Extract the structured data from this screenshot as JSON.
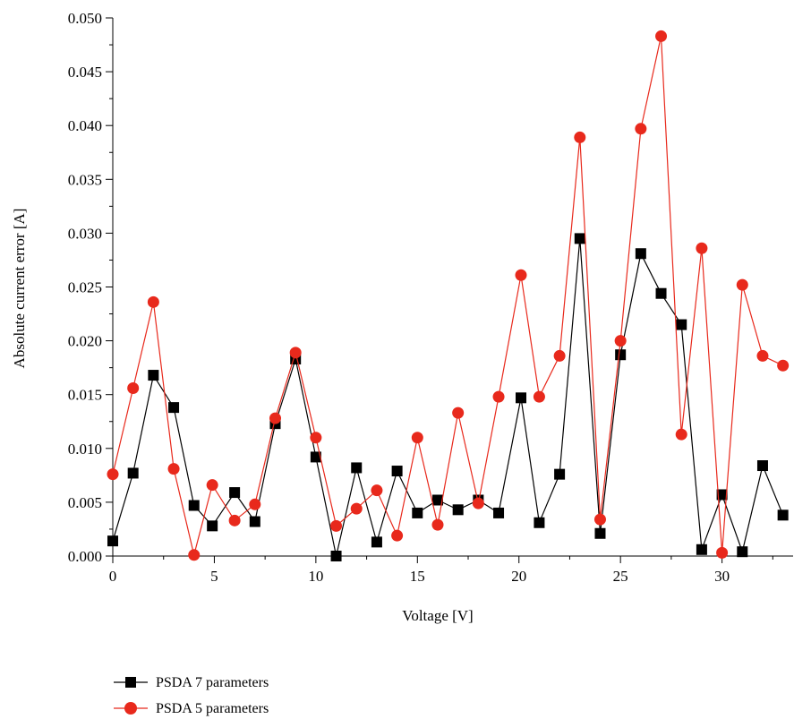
{
  "chart_data": {
    "type": "line",
    "xlabel": "Voltage [V]",
    "ylabel": "Absolute current error [A]",
    "xlim": [
      0,
      33.5
    ],
    "ylim": [
      0,
      0.05
    ],
    "x_ticks": [
      "0",
      "5",
      "10",
      "15",
      "20",
      "25",
      "30"
    ],
    "y_ticks": [
      "0.000",
      "0.005",
      "0.010",
      "0.015",
      "0.020",
      "0.025",
      "0.030",
      "0.035",
      "0.040",
      "0.045",
      "0.050"
    ],
    "grid": false,
    "legend_position": "bottom-left",
    "series": [
      {
        "name": "PSDA 7 parameters",
        "color": "#000000",
        "marker": "square",
        "x": [
          0.0,
          1.0,
          2.0,
          3.0,
          4.0,
          4.9,
          6.0,
          7.0,
          8.0,
          9.0,
          10.0,
          11.0,
          12.0,
          13.0,
          14.0,
          15.0,
          16.0,
          17.0,
          18.0,
          19.0,
          20.1,
          21.0,
          22.0,
          23.0,
          24.0,
          25.0,
          26.0,
          27.0,
          28.0,
          29.0,
          30.0,
          31.0,
          32.0,
          33.0
        ],
        "y": [
          0.0014,
          0.0077,
          0.0168,
          0.0138,
          0.0047,
          0.0028,
          0.0059,
          0.0032,
          0.0123,
          0.0183,
          0.0092,
          0.0,
          0.0082,
          0.0013,
          0.0079,
          0.004,
          0.0052,
          0.0043,
          0.0052,
          0.004,
          0.0147,
          0.0031,
          0.0076,
          0.0295,
          0.0021,
          0.0187,
          0.0281,
          0.0244,
          0.0215,
          0.0006,
          0.0057,
          0.0004,
          0.0084,
          0.0038
        ]
      },
      {
        "name": "PSDA 5 parameters",
        "color": "#e8291c",
        "marker": "circle",
        "x": [
          0.0,
          1.0,
          2.0,
          3.0,
          4.0,
          4.9,
          6.0,
          7.0,
          8.0,
          9.0,
          10.0,
          11.0,
          12.0,
          13.0,
          14.0,
          15.0,
          16.0,
          17.0,
          18.0,
          19.0,
          20.1,
          21.0,
          22.0,
          23.0,
          24.0,
          25.0,
          26.0,
          27.0,
          28.0,
          29.0,
          30.0,
          31.0,
          32.0,
          33.0
        ],
        "y": [
          0.0076,
          0.0156,
          0.0236,
          0.0081,
          0.0001,
          0.0066,
          0.0033,
          0.0048,
          0.0128,
          0.0189,
          0.011,
          0.0028,
          0.0044,
          0.0061,
          0.0019,
          0.011,
          0.0029,
          0.0133,
          0.0049,
          0.0148,
          0.0261,
          0.0148,
          0.0186,
          0.0389,
          0.0034,
          0.02,
          0.0397,
          0.0483,
          0.0113,
          0.0286,
          0.0003,
          0.0252,
          0.0186,
          0.0177
        ]
      }
    ]
  }
}
